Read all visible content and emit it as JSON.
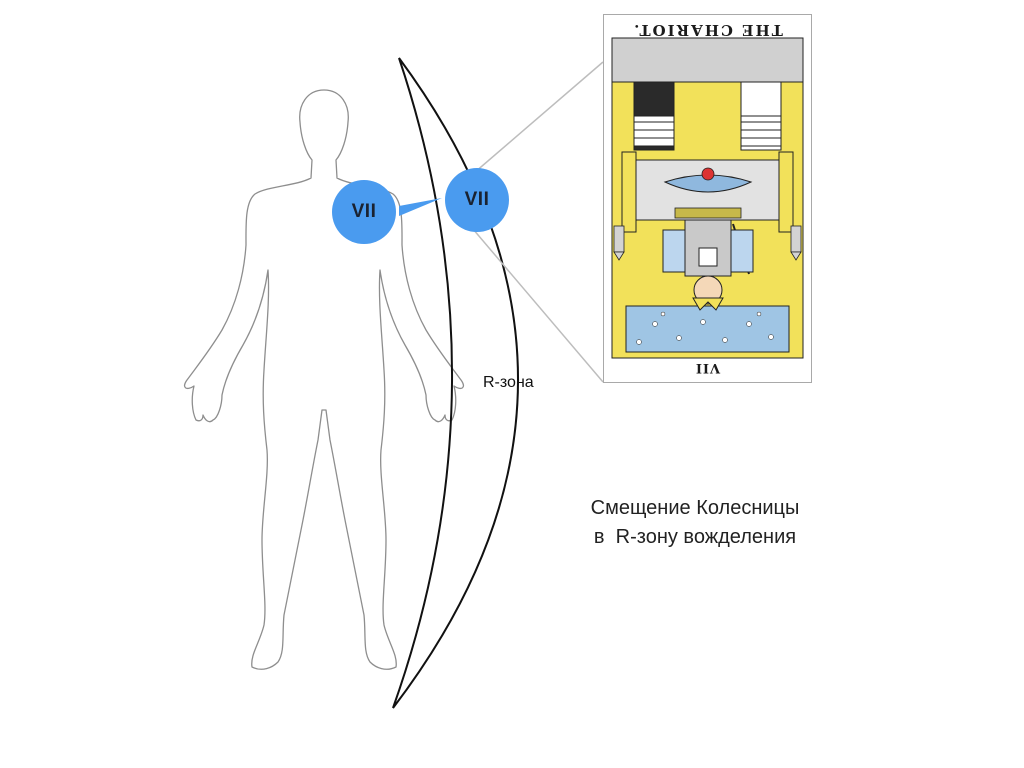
{
  "badges": {
    "body_numeral": "VII",
    "zone_numeral": "VII",
    "color": "#4A9BEF"
  },
  "zone": {
    "label": "R-зона"
  },
  "caption": {
    "line1": "Смещение Колесницы",
    "line2": "в  R-зону вожделения"
  },
  "card": {
    "title": "THE CHARIOT.",
    "number": "VII",
    "orientation": "reversed",
    "sky_color": "#F2E15A",
    "border_color": "#A9A9A9"
  },
  "icons": {
    "figure": "human-body-outline-icon",
    "arrow": "arrow-right-icon"
  }
}
